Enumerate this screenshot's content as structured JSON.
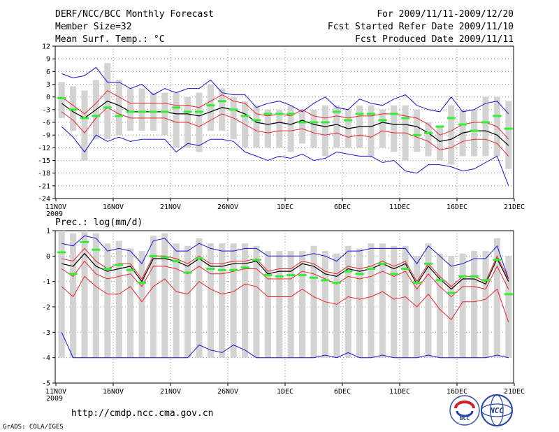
{
  "header": {
    "title": "DERF/NCC/BCC Monthly Forecast",
    "member_size": "Member Size=32",
    "variable": "Mean Surf. Temp.: °C",
    "forecast_range": "For 2009/11/11-2009/12/20",
    "started_refer": "Fcst Started Refer Date 2009/11/10",
    "produced": "Fcst Produced Date 2009/11/11"
  },
  "footer": {
    "url": "http://cmdp.ncc.cma.gov.cn",
    "credit": "GrADS: COLA/IGES",
    "logo_bcc": "BCC",
    "logo_ncc": "NCC"
  },
  "colors": {
    "box": "#d3d3d3",
    "mean": "#000000",
    "inner_band": "#e8242a",
    "outer_band": "#1515d0",
    "observed": "#33ee33",
    "grid": "#777777"
  },
  "chart_data": [
    {
      "type": "line",
      "title": "Mean Surf. Temp.: °C",
      "ylabel": "°C",
      "ylim": [
        -24,
        12
      ],
      "yticks": [
        12,
        9,
        6,
        3,
        0,
        -3,
        -6,
        -9,
        -12,
        -15,
        -18,
        -21,
        -24
      ],
      "xlabels": [
        "11NOV",
        "16NOV",
        "21NOV",
        "26NOV",
        "1DEC",
        "6DEC",
        "11DEC",
        "16DEC",
        "21DEC"
      ],
      "xlabel_sub": "2009",
      "days": 40,
      "series": [
        {
          "name": "ensemble mean",
          "values": [
            -1.5,
            -3.5,
            -5,
            -3,
            -1,
            -2,
            -3.5,
            -3.5,
            -3.5,
            -3.5,
            -4,
            -4,
            -4.5,
            -3.5,
            -2.5,
            -3,
            -4,
            -6,
            -6.5,
            -6,
            -6.5,
            -5.5,
            -6.5,
            -7,
            -6.5,
            -7.5,
            -7,
            -7,
            -6,
            -6.5,
            -6.5,
            -7,
            -8.5,
            -10.5,
            -10,
            -8.5,
            -8,
            -8,
            -9,
            -11.5
          ]
        },
        {
          "name": "upper inner",
          "values": [
            0,
            -2,
            -4,
            -1.5,
            1.5,
            0,
            -1.5,
            -1.5,
            -1.5,
            -1.5,
            -2,
            -2,
            -2.5,
            -1,
            0.5,
            -1,
            -1.5,
            -4,
            -4.5,
            -4,
            -4.5,
            -3,
            -4.5,
            -5,
            -4.5,
            -5,
            -4.5,
            -4.5,
            -4,
            -4,
            -4.5,
            -5,
            -6.5,
            -9,
            -8,
            -6.5,
            -6,
            -6,
            -7,
            -10
          ]
        },
        {
          "name": "lower inner",
          "values": [
            -3.5,
            -5.5,
            -8.5,
            -5,
            -2.5,
            -4,
            -5,
            -5,
            -5,
            -5,
            -6,
            -6,
            -7,
            -5.5,
            -4,
            -5,
            -6.5,
            -8,
            -8.5,
            -8,
            -8,
            -7.5,
            -8.5,
            -9,
            -8.5,
            -9.5,
            -9,
            -9.5,
            -8,
            -8.5,
            -8.5,
            -9.5,
            -10.5,
            -12.5,
            -12,
            -10.5,
            -10,
            -10,
            -11,
            -14
          ]
        },
        {
          "name": "upper outer",
          "values": [
            5.5,
            4.5,
            5,
            7,
            3.5,
            3.5,
            2,
            3,
            0.5,
            2,
            1,
            2,
            2,
            4,
            1,
            0.5,
            0.5,
            -2.5,
            -1.5,
            -1,
            -2,
            -3.5,
            -1.5,
            0,
            -2.5,
            -3,
            -0.5,
            -1.5,
            -2,
            -0.5,
            0.5,
            -2,
            -3,
            -3.5,
            0,
            -3.5,
            -3,
            -1.5,
            -1,
            -4
          ]
        },
        {
          "name": "lower outer",
          "values": [
            -7,
            -9.5,
            -13,
            -9,
            -10.5,
            -9.5,
            -10.5,
            -10,
            -10,
            -10,
            -13,
            -11,
            -11.5,
            -10,
            -10,
            -10.5,
            -13,
            -14,
            -15,
            -14,
            -14.5,
            -13.5,
            -15,
            -14.5,
            -13,
            -13.5,
            -14,
            -14,
            -15.5,
            -15,
            -17.5,
            -18,
            -16,
            -16,
            -16.5,
            -17.5,
            -17,
            -15.5,
            -14,
            -21
          ]
        },
        {
          "name": "box top",
          "values": [
            3.5,
            2.5,
            1.5,
            4,
            8,
            4,
            2,
            2,
            1,
            1,
            1,
            0,
            1,
            3,
            2,
            0,
            -1,
            -2,
            -3,
            -3,
            -2,
            -3,
            -3,
            -2,
            -2,
            -3,
            -2,
            -2,
            -3,
            -2,
            -2,
            -3,
            -6,
            -7,
            -2,
            -3,
            -3,
            0,
            0,
            -1
          ]
        },
        {
          "name": "box bottom",
          "values": [
            -5,
            -8,
            -15,
            -10,
            -10,
            -9,
            -8,
            -8,
            -8,
            -9,
            -12,
            -12,
            -13,
            -8,
            -8,
            -10,
            -12,
            -12,
            -12,
            -12,
            -13,
            -11,
            -12,
            -14,
            -12,
            -12,
            -12,
            -14,
            -12,
            -13,
            -15,
            -13,
            -14,
            -15,
            -16,
            -14,
            -14,
            -14,
            -14,
            -17
          ]
        },
        {
          "name": "observed",
          "values": [
            -0.3,
            -3,
            -5,
            -4.5,
            -2.5,
            -4.5,
            -3.5,
            -3.5,
            -3.5,
            -3.5,
            -2.5,
            -3.5,
            -3.5,
            -2,
            -1,
            -3,
            -4.5,
            -5.5,
            -4,
            -4,
            -4,
            -6,
            -6,
            -6,
            -3.5,
            -5.5,
            -4,
            -4,
            -5.5,
            -4,
            -5,
            -9,
            -8.5,
            -7,
            -5,
            -6.5,
            -8,
            -6,
            -4.5,
            -7.5
          ]
        }
      ]
    },
    {
      "type": "line",
      "title": "Prec.: log(mm/d)",
      "ylabel": "log(mm/d)",
      "ylim": [
        -5,
        1
      ],
      "yticks": [
        1,
        0,
        -1,
        -2,
        -3,
        -4,
        -5
      ],
      "xlabels": [
        "11NOV",
        "16NOV",
        "21NOV",
        "26NOV",
        "1DEC",
        "6DEC",
        "11DEC",
        "16DEC",
        "21DEC"
      ],
      "xlabel_sub": "2009",
      "days": 40,
      "series": [
        {
          "name": "ensemble mean",
          "values": [
            -0.3,
            -0.4,
            0.1,
            -0.4,
            -0.6,
            -0.5,
            -0.4,
            -1,
            -0.1,
            -0.1,
            -0.2,
            -0.4,
            -0.1,
            -0.4,
            -0.4,
            -0.3,
            -0.3,
            -0.2,
            -0.7,
            -0.6,
            -0.6,
            -0.3,
            -0.4,
            -0.7,
            -0.8,
            -0.5,
            -0.6,
            -0.5,
            -0.3,
            -0.5,
            -0.3,
            -1.1,
            -0.4,
            -0.9,
            -1.3,
            -0.9,
            -0.9,
            -1.1,
            -0.1,
            -1
          ]
        },
        {
          "name": "upper inner",
          "values": [
            -0.1,
            -0.2,
            0.3,
            -0.2,
            -0.5,
            -0.3,
            -0.3,
            -0.9,
            0,
            0,
            -0.1,
            -0.3,
            0,
            -0.3,
            -0.3,
            -0.2,
            -0.2,
            -0.1,
            -0.6,
            -0.5,
            -0.5,
            -0.2,
            -0.3,
            -0.6,
            -0.7,
            -0.4,
            -0.5,
            -0.4,
            -0.2,
            -0.4,
            -0.2,
            -1,
            -0.3,
            -0.8,
            -1.2,
            -0.8,
            -0.8,
            -1,
            0,
            -0.9
          ]
        },
        {
          "name": "lower inner",
          "values": [
            -0.5,
            -0.8,
            -0.2,
            -0.7,
            -0.9,
            -0.8,
            -0.7,
            -1.2,
            -0.4,
            -0.4,
            -0.5,
            -0.7,
            -0.4,
            -0.7,
            -0.7,
            -0.6,
            -0.5,
            -0.5,
            -0.9,
            -0.9,
            -0.9,
            -0.6,
            -0.7,
            -0.9,
            -1.1,
            -0.8,
            -0.9,
            -0.8,
            -0.6,
            -0.8,
            -0.6,
            -1.3,
            -0.7,
            -1.2,
            -1.6,
            -1.2,
            -1.2,
            -1.3,
            -0.4,
            -1.3
          ]
        },
        {
          "name": "lower red",
          "values": [
            -1.2,
            -1.6,
            -0.8,
            -1.2,
            -1.5,
            -1.5,
            -1.2,
            -1.8,
            -1.2,
            -0.9,
            -1.4,
            -1.5,
            -1,
            -1.3,
            -1.5,
            -1.4,
            -1.1,
            -1.2,
            -1.6,
            -1.6,
            -1.6,
            -1.3,
            -1.6,
            -1.8,
            -1.9,
            -1.6,
            -1.7,
            -1.6,
            -1.4,
            -1.7,
            -1.6,
            -2,
            -1.5,
            -2.1,
            -2.5,
            -1.8,
            -1.8,
            -1.7,
            -1.3,
            -2.6
          ]
        },
        {
          "name": "upper outer",
          "values": [
            0.5,
            0.4,
            0.8,
            0.7,
            0.2,
            0.3,
            0.2,
            -0.3,
            0.6,
            0.7,
            0.2,
            0.2,
            0.5,
            0.3,
            0.2,
            0.2,
            0.3,
            0.3,
            0,
            0,
            0,
            0,
            0.1,
            0,
            -0.2,
            0.2,
            0.2,
            0.3,
            0.3,
            0.3,
            0.3,
            -0.3,
            0.4,
            0,
            -0.4,
            -0.3,
            -0.1,
            -0.1,
            0.4,
            -0.9
          ]
        },
        {
          "name": "lower outer",
          "values": [
            -3,
            -4,
            -4,
            -4,
            -4,
            -4,
            -4,
            -4,
            -4,
            -4,
            -4,
            -4,
            -3.5,
            -3.7,
            -3.8,
            -3.5,
            -3.7,
            -4,
            -4,
            -4,
            -4,
            -4,
            -4,
            -3.9,
            -4,
            -3.8,
            -4,
            -4,
            -3.9,
            -4,
            -4,
            -4,
            -3.9,
            -4,
            -4,
            -4,
            -4,
            -4,
            -3.9,
            -4
          ]
        },
        {
          "name": "box top",
          "values": [
            1,
            0.9,
            1,
            0.9,
            0.5,
            0.6,
            0.3,
            0.2,
            0.8,
            0.9,
            0.5,
            0.4,
            0.7,
            0.5,
            0.5,
            0.5,
            0.5,
            0.4,
            0.2,
            0.2,
            0.2,
            0.2,
            0.4,
            0.2,
            0.1,
            0.4,
            0.3,
            0.5,
            0.5,
            0.4,
            0.4,
            0,
            0.5,
            0.1,
            0,
            0.1,
            0.2,
            0.2,
            0.7,
            0
          ]
        },
        {
          "name": "box bottom",
          "values": [
            -4,
            -4,
            -4,
            -4,
            -4,
            -4,
            -4,
            -4,
            -4,
            -4,
            -4,
            -4,
            -4,
            -4,
            -4,
            -4,
            -4,
            -4,
            -4,
            -4,
            -4,
            -4,
            -4,
            -4,
            -4,
            -4,
            -4,
            -4,
            -4,
            -4,
            -4,
            -4,
            -4,
            -4,
            -4,
            -4,
            -4,
            -4,
            -4,
            -4
          ]
        },
        {
          "name": "observed",
          "values": [
            0.15,
            -0.7,
            0.55,
            0.25,
            -0.5,
            -0.35,
            -0.55,
            -1.05,
            0,
            -0.05,
            -0.2,
            -0.65,
            -0.1,
            -0.5,
            -0.55,
            -0.55,
            -0.45,
            -0.15,
            -0.75,
            -0.8,
            -0.75,
            -0.75,
            -0.85,
            -0.95,
            -1.05,
            -0.6,
            -0.7,
            -0.5,
            -0.3,
            -0.7,
            -0.5,
            -1.05,
            -0.3,
            -0.95,
            -1.45,
            -0.8,
            -0.8,
            -0.95,
            -0.15,
            -1.5
          ]
        }
      ]
    }
  ]
}
